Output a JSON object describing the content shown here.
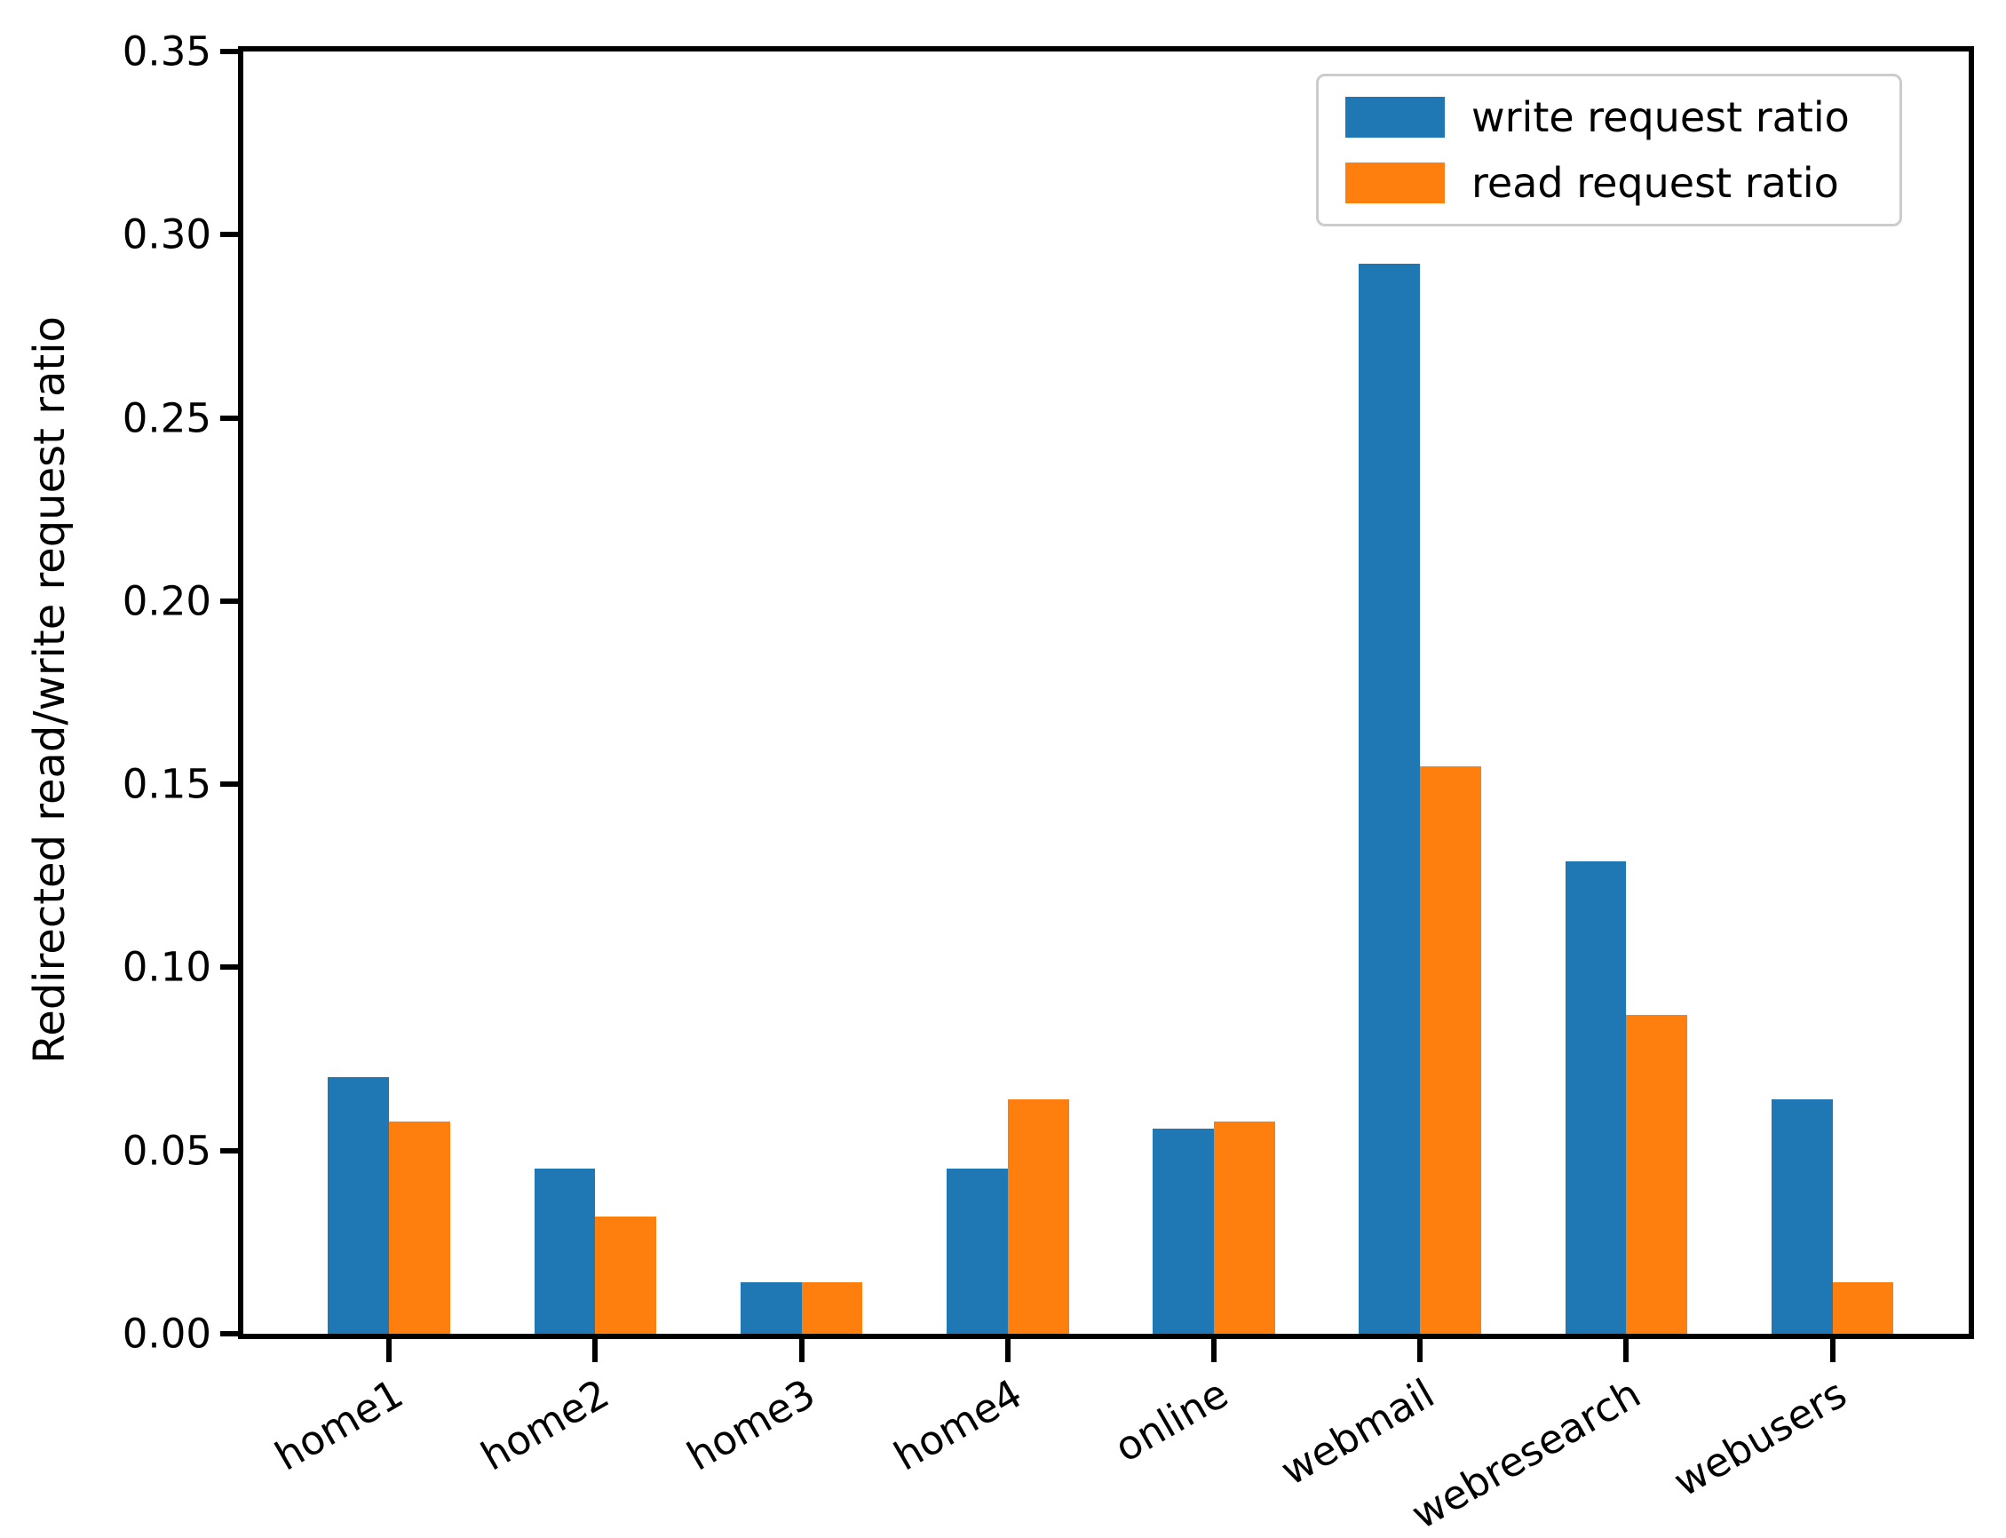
{
  "figure": {
    "background": "#ffffff",
    "y_ticks": [
      "0.00",
      "0.05",
      "0.10",
      "0.15",
      "0.20",
      "0.25",
      "0.30",
      "0.35"
    ]
  },
  "legend": {
    "items": [
      {
        "label": "write request ratio",
        "color": "#1f77b4"
      },
      {
        "label": "read request ratio",
        "color": "#ff7f0e"
      }
    ]
  },
  "chart_data": {
    "type": "bar",
    "title": "",
    "xlabel": "",
    "ylabel": "Redirected read/write request ratio",
    "ylim": [
      0,
      0.35
    ],
    "y_tick_step": 0.05,
    "grid": false,
    "legend_position": "upper right",
    "categories": [
      "home1",
      "home2",
      "home3",
      "home4",
      "online",
      "webmail",
      "webresearch",
      "webusers"
    ],
    "series": [
      {
        "name": "write request ratio",
        "color": "#1f77b4",
        "values": [
          0.07,
          0.045,
          0.014,
          0.045,
          0.056,
          0.292,
          0.129,
          0.064
        ]
      },
      {
        "name": "read request ratio",
        "color": "#ff7f0e",
        "values": [
          0.058,
          0.032,
          0.014,
          0.064,
          0.058,
          0.155,
          0.087,
          0.014
        ]
      }
    ]
  }
}
